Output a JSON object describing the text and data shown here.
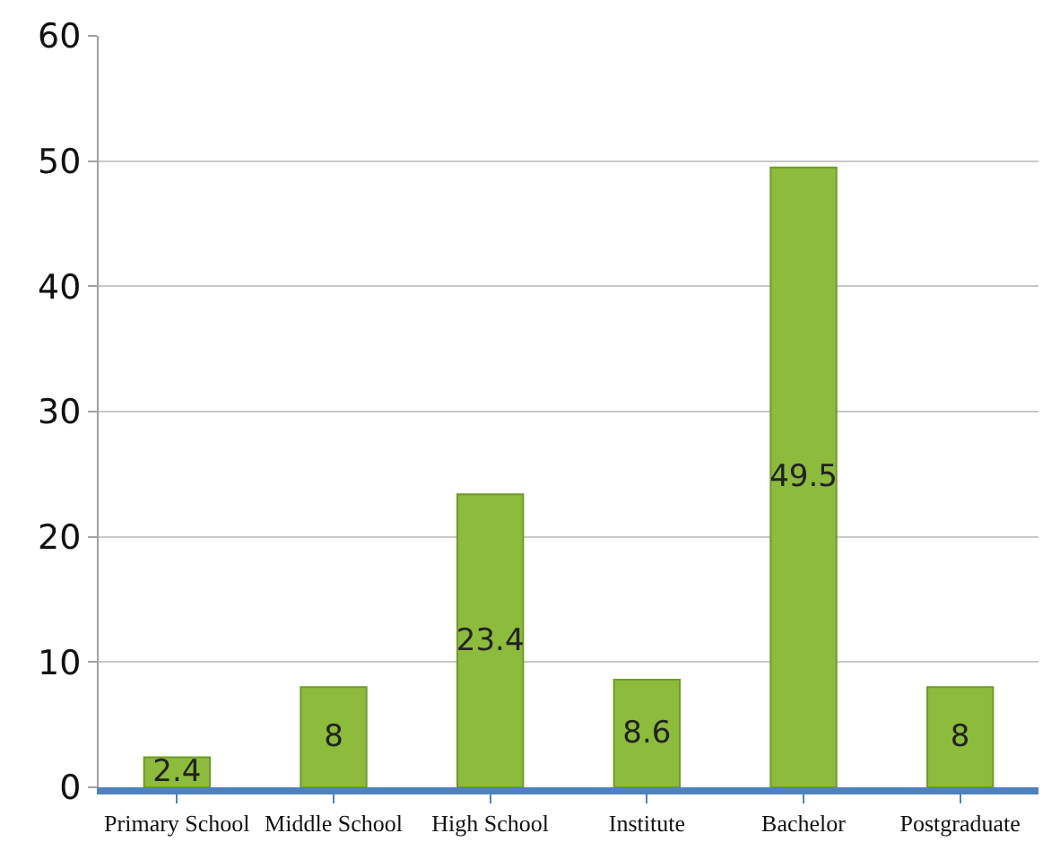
{
  "chart_data": {
    "type": "bar",
    "categories": [
      "Primary School",
      "Middle School",
      "High School",
      "Institute",
      "Bachelor",
      "Postgraduate"
    ],
    "values": [
      2.4,
      8,
      23.4,
      8.6,
      49.5,
      8
    ],
    "color": "#8dbb3c",
    "ylim": [
      0,
      60
    ],
    "yticks": [
      0,
      10,
      20,
      30,
      40,
      50,
      60
    ],
    "grid": "y",
    "data_labels": true,
    "legend": false
  }
}
